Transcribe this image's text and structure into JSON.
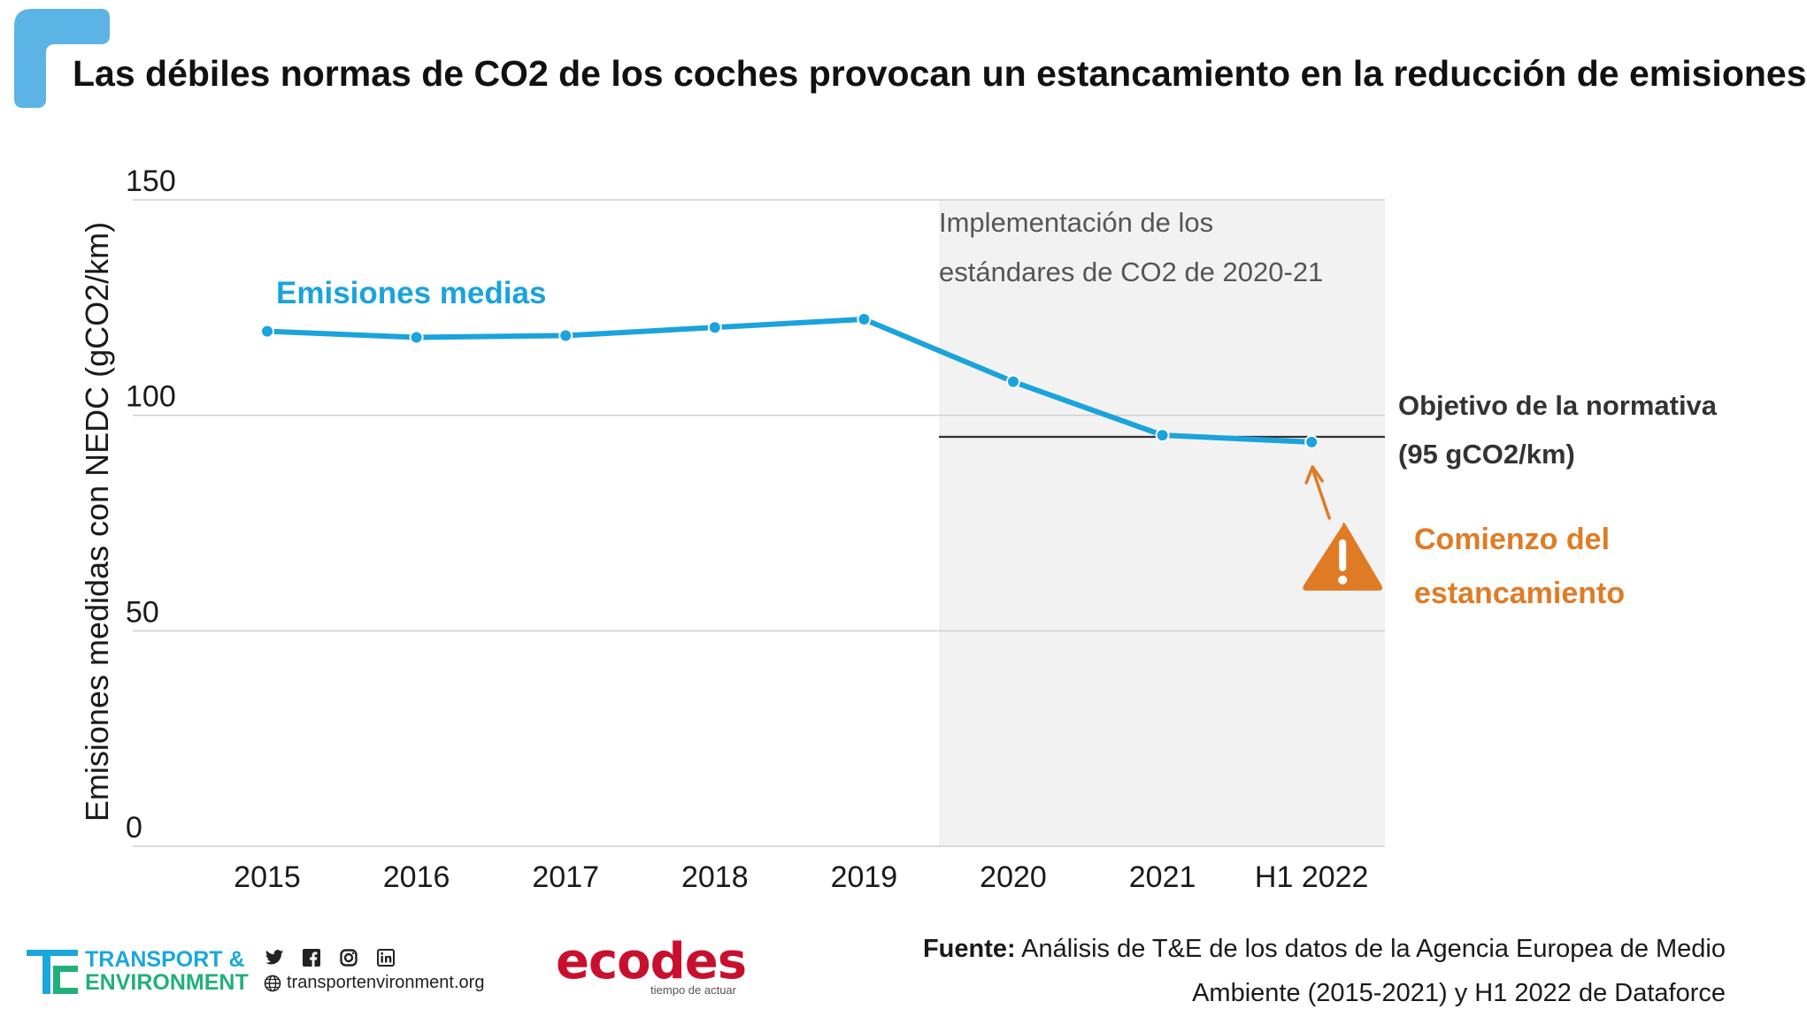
{
  "title": "Las débiles normas de CO2 de los coches provocan un estancamiento en la reducción de emisiones",
  "colors": {
    "accent": "#5bb3e6",
    "line": "#1aa3dc",
    "orange": "#e07b25",
    "shade": "#f2f2f2",
    "target_line": "#333333"
  },
  "chart_data": {
    "type": "line",
    "title": "Las débiles normas de CO2 de los coches provocan un estancamiento en la reducción de emisiones",
    "xlabel": "",
    "ylabel": "Emisiones medidas con NEDC (gCO2/km)",
    "ylim": [
      0,
      150
    ],
    "yticks": [
      0,
      50,
      100,
      150
    ],
    "grid": true,
    "categories": [
      "2015",
      "2016",
      "2017",
      "2018",
      "2019",
      "2020",
      "2021",
      "H1 2022"
    ],
    "series": [
      {
        "name": "Emisiones medias",
        "values": [
          119.5,
          118.1,
          118.5,
          120.4,
          122.3,
          107.8,
          95.4,
          93.8
        ]
      }
    ],
    "target": {
      "value": 95,
      "label_line1": "Objetivo de la normativa",
      "label_line2": "(95 gCO2/km)"
    },
    "shaded_region": {
      "from_category": "2020",
      "label_line1": "Implementación de los",
      "label_line2": "estándares de CO2 de 2020-21"
    },
    "annotation": {
      "category": "H1 2022",
      "line1": "Comienzo del",
      "line2": "estancamiento"
    }
  },
  "footer": {
    "logo_line1": "TRANSPORT &",
    "logo_line2": "ENVIRONMENT",
    "social": [
      "twitter-icon",
      "facebook-icon",
      "instagram-icon",
      "linkedin-icon"
    ],
    "website": "transportenvironment.org",
    "ecodes_name": "ecodes",
    "ecodes_tagline": "tiempo de actuar",
    "source_label": "Fuente:",
    "source_line1": "Análisis de T&E de los datos de la Agencia Europea de Medio",
    "source_line2": "Ambiente (2015-2021) y H1 2022 de Dataforce"
  }
}
